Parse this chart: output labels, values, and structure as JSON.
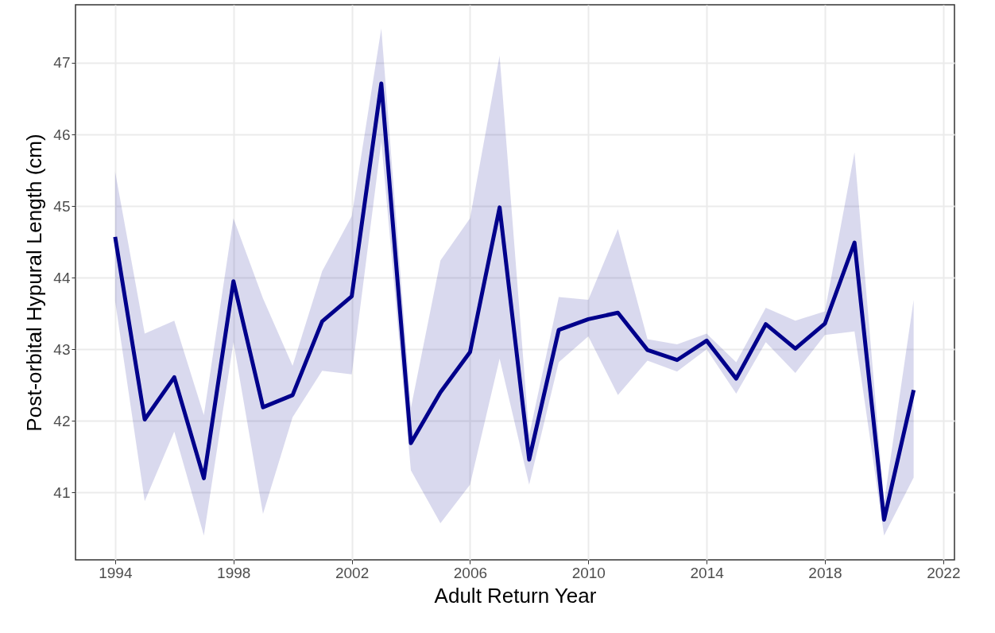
{
  "chart_data": {
    "type": "line",
    "xlabel": "Adult Return Year",
    "ylabel": "Post-orbital Hypural Length (cm)",
    "x": [
      1994,
      1995,
      1996,
      1997,
      1998,
      1999,
      2000,
      2001,
      2002,
      2003,
      2004,
      2005,
      2006,
      2007,
      2008,
      2009,
      2010,
      2011,
      2012,
      2013,
      2014,
      2015,
      2016,
      2017,
      2018,
      2019,
      2020,
      2021
    ],
    "series": [
      {
        "color": "#00008b",
        "values": [
          44.57,
          42.02,
          42.61,
          41.2,
          43.95,
          42.19,
          42.36,
          43.39,
          43.74,
          46.71,
          41.69,
          42.4,
          42.96,
          44.98,
          41.46,
          43.27,
          43.42,
          43.51,
          42.99,
          42.85,
          43.12,
          42.59,
          43.35,
          43.01,
          43.36,
          44.49,
          40.62,
          42.43
        ],
        "upper": [
          45.48,
          43.22,
          43.4,
          42.08,
          44.83,
          43.71,
          42.77,
          44.09,
          44.86,
          47.48,
          42.18,
          44.24,
          44.83,
          47.1,
          41.8,
          43.73,
          43.69,
          44.68,
          43.14,
          43.07,
          43.22,
          42.82,
          43.58,
          43.4,
          43.53,
          45.75,
          40.86,
          43.69
        ],
        "lower": [
          43.67,
          40.88,
          41.85,
          40.4,
          43.1,
          40.7,
          42.05,
          42.7,
          42.65,
          45.9,
          41.31,
          40.57,
          41.11,
          42.87,
          41.11,
          42.82,
          43.18,
          42.36,
          42.84,
          42.69,
          43.0,
          42.38,
          43.1,
          42.67,
          43.2,
          43.25,
          40.4,
          41.21
        ]
      }
    ],
    "xlim": [
      1992.66,
      2022.38
    ],
    "xticks": [
      1994,
      1998,
      2002,
      2006,
      2010,
      2014,
      2018,
      2022
    ],
    "ylim": [
      40.06,
      47.81
    ],
    "yticks": [
      41,
      42,
      43,
      44,
      45,
      46,
      47
    ],
    "grid": true,
    "marker": "none",
    "line_style": "solid"
  }
}
